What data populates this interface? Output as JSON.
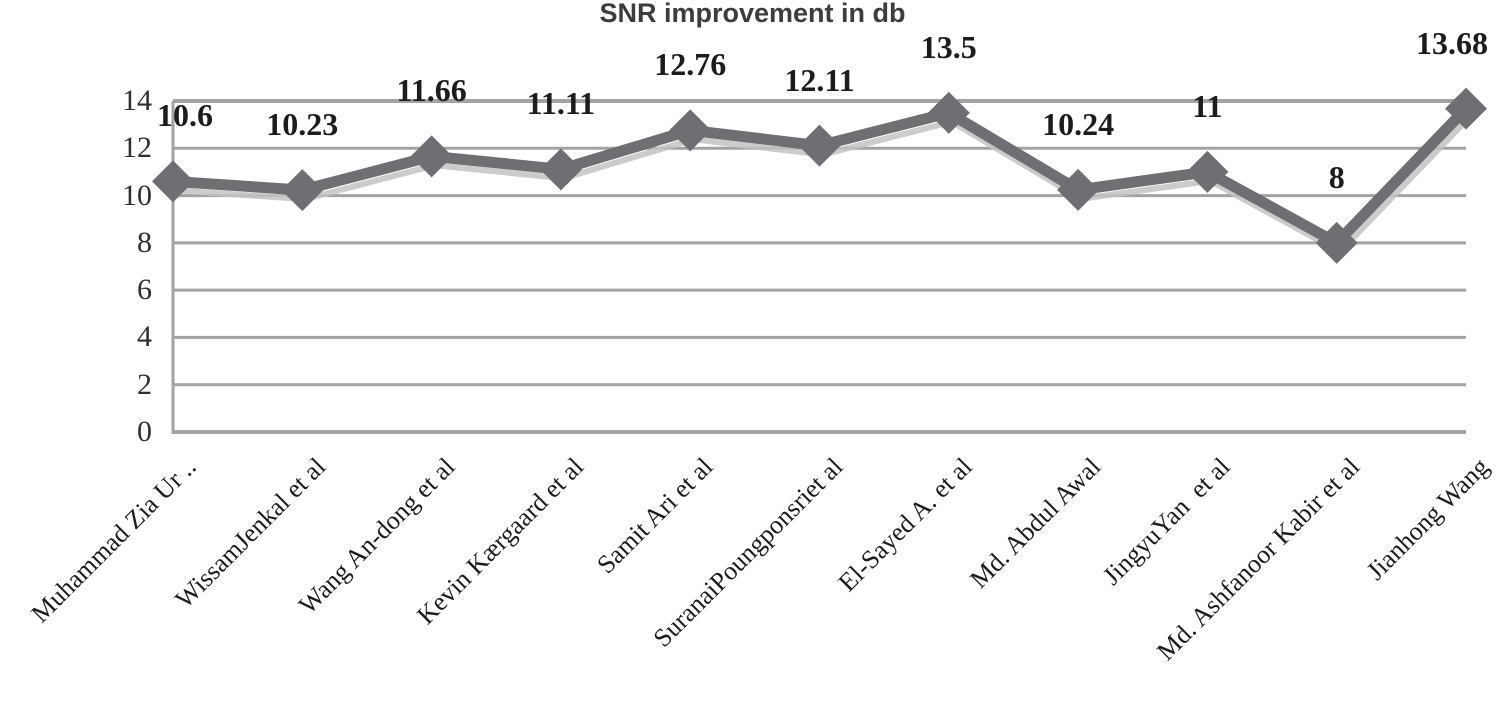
{
  "figure": {
    "title": "SNR improvement in db"
  },
  "chart_data": {
    "type": "line",
    "title": "SNR improvement in db",
    "categories": [
      "Muhammad Zia Ur ..",
      "WissamJenkal et al",
      "Wang An-dong et al",
      "Kevin Kærgaard et al",
      "Samit Ari et al",
      "SuranaiPoungponsriet al",
      "El-Sayed A. et al",
      "Md. Abdul Awal",
      "JingyuYan  et al",
      "Md. Ashfanoor Kabir et al",
      "Jianhong Wang"
    ],
    "series": [
      {
        "name": "SNR improvement in db",
        "values": [
          10.6,
          10.23,
          11.66,
          11.11,
          12.76,
          12.11,
          13.5,
          10.24,
          11,
          8,
          13.68
        ],
        "labels": [
          "10.6",
          "10.23",
          "11.66",
          "11.11",
          "12.76",
          "12.11",
          "13.5",
          "10.24",
          "11",
          "8",
          "13.68"
        ]
      }
    ],
    "xlabel": "",
    "ylabel": "",
    "ylim": [
      0,
      14
    ],
    "yticks": [
      0,
      2,
      4,
      6,
      8,
      10,
      12,
      14
    ],
    "grid": "horizontal",
    "legend": "none",
    "marker": "diamond",
    "data_label_position": "above",
    "colors": {
      "series": "#6f6f73",
      "series_shadow": "#c3c3c3",
      "gridline": "#a3a3a3",
      "axis_line": "#a3a3a3",
      "axis_text": "#2f2f2f",
      "data_label_text": "#1c1c1c",
      "title_text": "#3d3d3d",
      "background": "#ffffff"
    }
  }
}
